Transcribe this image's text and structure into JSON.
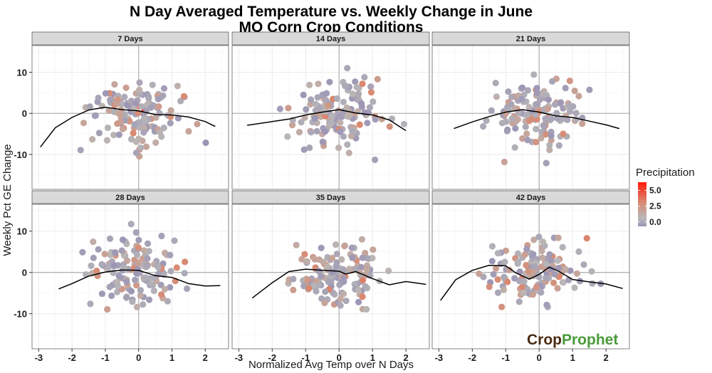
{
  "chart_data": {
    "type": "scatter",
    "title_line1": "N Day Averaged Temperature vs. Weekly Change in June",
    "title_line2": "MO Corn Crop Conditions",
    "xlabel": "Normalized Avg Temp over N Days",
    "ylabel": "Weekly Pct GE Change",
    "xlim": [
      -3.2,
      2.7
    ],
    "ylim": [
      -18.5,
      16.5
    ],
    "x_ticks": [
      -3,
      -2,
      -1,
      0,
      1,
      2
    ],
    "x_tick_labels": [
      "-3",
      "-2",
      "-1",
      "0",
      "1",
      "2"
    ],
    "y_ticks": [
      10,
      0,
      -10
    ],
    "y_tick_labels": [
      "10",
      "0",
      "-10"
    ],
    "grid": true,
    "legend": {
      "title": "Precipitation",
      "position": "right",
      "labels": [
        "5.0",
        "2.5",
        "0.0"
      ],
      "values": [
        5.0,
        2.5,
        0.0
      ],
      "range": [
        -0.7,
        6.3
      ],
      "colors": [
        "#9a93b5",
        "#b8b8b8",
        "#d98a72",
        "#ff1a0a"
      ]
    },
    "panels": [
      {
        "label": "7 Days",
        "smooth": [
          [
            -2.95,
            -8.2
          ],
          [
            -2.5,
            -3.5
          ],
          [
            -2.0,
            -1.0
          ],
          [
            -1.5,
            0.8
          ],
          [
            -1.0,
            1.5
          ],
          [
            -0.5,
            0.9
          ],
          [
            0.0,
            0.6
          ],
          [
            0.5,
            -0.3
          ],
          [
            1.0,
            -0.4
          ],
          [
            1.5,
            -0.9
          ],
          [
            2.0,
            -2.0
          ],
          [
            2.3,
            -3.2
          ]
        ]
      },
      {
        "label": "14 Days",
        "smooth": [
          [
            -2.75,
            -2.9
          ],
          [
            -2.0,
            -2.0
          ],
          [
            -1.5,
            -1.4
          ],
          [
            -1.0,
            -0.4
          ],
          [
            -0.5,
            0.3
          ],
          [
            0.0,
            0.9
          ],
          [
            0.5,
            0.1
          ],
          [
            1.0,
            -0.4
          ],
          [
            1.5,
            -1.6
          ],
          [
            2.0,
            -4.2
          ]
        ]
      },
      {
        "label": "21 Days",
        "smooth": [
          [
            -2.55,
            -3.7
          ],
          [
            -2.0,
            -2.1
          ],
          [
            -1.5,
            -0.8
          ],
          [
            -1.0,
            0.3
          ],
          [
            -0.5,
            0.9
          ],
          [
            0.0,
            0.3
          ],
          [
            0.5,
            -0.6
          ],
          [
            1.0,
            -1.0
          ],
          [
            1.5,
            -1.9
          ],
          [
            2.0,
            -2.8
          ],
          [
            2.4,
            -3.7
          ]
        ]
      },
      {
        "label": "28 Days",
        "smooth": [
          [
            -2.4,
            -4.0
          ],
          [
            -2.0,
            -2.7
          ],
          [
            -1.5,
            -0.9
          ],
          [
            -1.0,
            0.1
          ],
          [
            -0.5,
            0.6
          ],
          [
            0.0,
            0.5
          ],
          [
            0.5,
            -0.8
          ],
          [
            1.0,
            -1.2
          ],
          [
            1.5,
            -2.7
          ],
          [
            2.0,
            -3.3
          ],
          [
            2.45,
            -3.2
          ]
        ]
      },
      {
        "label": "35 Days",
        "smooth": [
          [
            -2.6,
            -6.2
          ],
          [
            -2.0,
            -2.5
          ],
          [
            -1.5,
            0.2
          ],
          [
            -1.0,
            0.8
          ],
          [
            -0.5,
            0.5
          ],
          [
            0.0,
            0.3
          ],
          [
            0.2,
            -0.4
          ],
          [
            0.5,
            0.2
          ],
          [
            1.0,
            -1.5
          ],
          [
            1.5,
            -3.0
          ],
          [
            2.0,
            -2.2
          ],
          [
            2.6,
            -2.9
          ]
        ]
      },
      {
        "label": "42 Days",
        "smooth": [
          [
            -2.95,
            -6.8
          ],
          [
            -2.5,
            -1.8
          ],
          [
            -2.0,
            0.5
          ],
          [
            -1.5,
            1.7
          ],
          [
            -1.0,
            1.6
          ],
          [
            -0.7,
            -0.1
          ],
          [
            -0.3,
            -1.6
          ],
          [
            0.0,
            -0.5
          ],
          [
            0.3,
            1.3
          ],
          [
            0.6,
            0.2
          ],
          [
            1.0,
            -1.7
          ],
          [
            1.5,
            -2.3
          ],
          [
            2.0,
            -2.8
          ],
          [
            2.5,
            -3.9
          ]
        ]
      }
    ],
    "annotations": [
      {
        "text_a": "Crop",
        "text_b": "Prophet"
      }
    ]
  }
}
